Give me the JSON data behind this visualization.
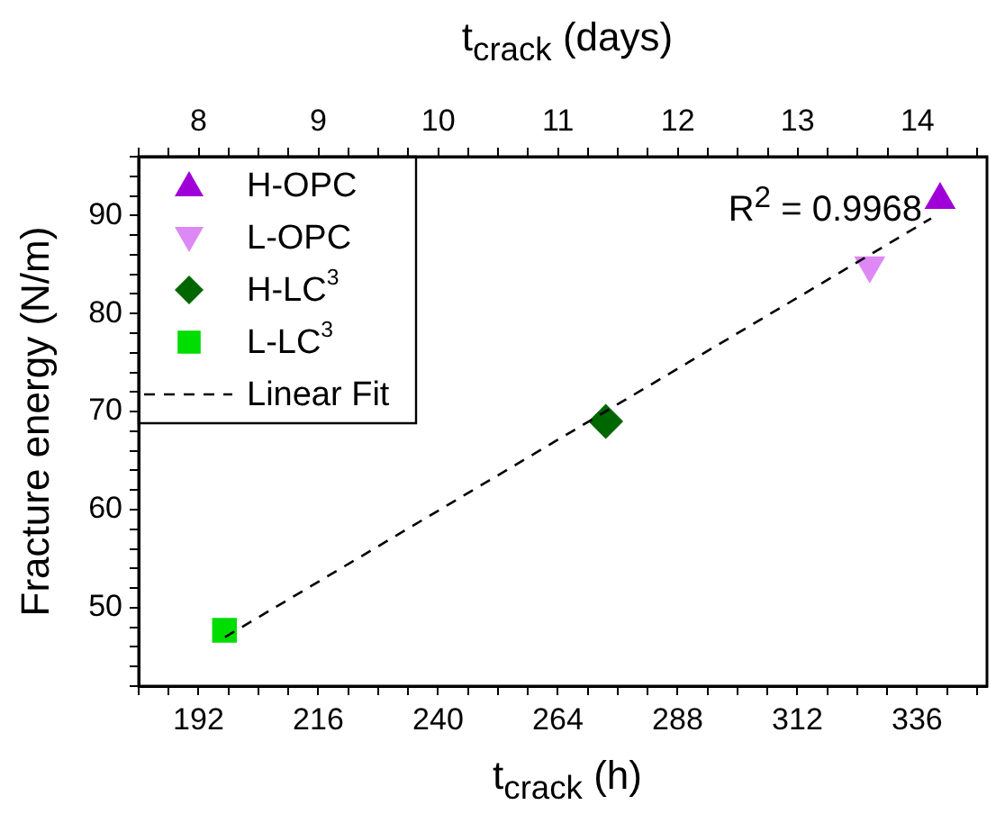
{
  "chart_data": {
    "type": "scatter",
    "xlabel": "t$_{crack}$ (h)",
    "x2label": "t$_{crack}$ (days)",
    "ylabel": "Fracture energy (N/m)",
    "xlim": [
      180,
      350
    ],
    "xticks": [
      {
        "value": 180,
        "label": null
      },
      {
        "value": 186,
        "label": null
      },
      192,
      {
        "value": 198,
        "label": null
      },
      {
        "value": 204,
        "label": null
      },
      {
        "value": 210,
        "label": null
      },
      216,
      {
        "value": 222,
        "label": null
      },
      {
        "value": 228,
        "label": null
      },
      {
        "value": 234,
        "label": null
      },
      240,
      {
        "value": 246,
        "label": null
      },
      {
        "value": 252,
        "label": null
      },
      {
        "value": 258,
        "label": null
      },
      264,
      {
        "value": 270,
        "label": null
      },
      {
        "value": 276,
        "label": null
      },
      {
        "value": 282,
        "label": null
      },
      288,
      {
        "value": 294,
        "label": null
      },
      {
        "value": 300,
        "label": null
      },
      {
        "value": 306,
        "label": null
      },
      312,
      {
        "value": 318,
        "label": null
      },
      {
        "value": 324,
        "label": null
      },
      {
        "value": 330,
        "label": null
      },
      336,
      {
        "value": 342,
        "label": null
      },
      {
        "value": 348,
        "label": null
      }
    ],
    "x2lim": [
      7.5,
      14.58
    ],
    "x2ticks": [
      {
        "value": 7.5,
        "label": null
      },
      {
        "value": 7.75,
        "label": null
      },
      8,
      {
        "value": 8.25,
        "label": null
      },
      {
        "value": 8.5,
        "label": null
      },
      {
        "value": 8.75,
        "label": null
      },
      9,
      {
        "value": 9.25,
        "label": null
      },
      {
        "value": 9.5,
        "label": null
      },
      {
        "value": 9.75,
        "label": null
      },
      10,
      {
        "value": 10.25,
        "label": null
      },
      {
        "value": 10.5,
        "label": null
      },
      {
        "value": 10.75,
        "label": null
      },
      11,
      {
        "value": 11.25,
        "label": null
      },
      {
        "value": 11.5,
        "label": null
      },
      {
        "value": 11.75,
        "label": null
      },
      12,
      {
        "value": 12.25,
        "label": null
      },
      {
        "value": 12.5,
        "label": null
      },
      {
        "value": 12.75,
        "label": null
      },
      13,
      {
        "value": 13.25,
        "label": null
      },
      {
        "value": 13.5,
        "label": null
      },
      {
        "value": 13.75,
        "label": null
      },
      14,
      {
        "value": 14.25,
        "label": null
      },
      {
        "value": 14.5,
        "label": null
      }
    ],
    "ylim": [
      42,
      96
    ],
    "yticks": [
      {
        "value": 42,
        "label": null
      },
      {
        "value": 44,
        "label": null
      },
      {
        "value": 46,
        "label": null
      },
      {
        "value": 48,
        "label": null
      },
      50,
      {
        "value": 52,
        "label": null
      },
      {
        "value": 54,
        "label": null
      },
      {
        "value": 56,
        "label": null
      },
      {
        "value": 58,
        "label": null
      },
      60,
      {
        "value": 62,
        "label": null
      },
      {
        "value": 64,
        "label": null
      },
      {
        "value": 66,
        "label": null
      },
      {
        "value": 68,
        "label": null
      },
      70,
      {
        "value": 72,
        "label": null
      },
      {
        "value": 74,
        "label": null
      },
      {
        "value": 76,
        "label": null
      },
      {
        "value": 78,
        "label": null
      },
      80,
      {
        "value": 82,
        "label": null
      },
      {
        "value": 84,
        "label": null
      },
      {
        "value": 86,
        "label": null
      },
      {
        "value": 88,
        "label": null
      },
      90,
      {
        "value": 92,
        "label": null
      },
      {
        "value": 94,
        "label": null
      },
      {
        "value": 96,
        "label": null
      }
    ],
    "grid": false,
    "legend": "top left",
    "annotations": [
      "R$^{2}$ = 0.9968"
    ],
    "series": [
      {
        "name": "H-OPC",
        "color": "#a000d8",
        "marker": "triangle",
        "x": [
          340.6
        ],
        "values": [
          91.6
        ]
      },
      {
        "name": "L-OPC",
        "color": "#dd88f4",
        "marker": "triangle-down",
        "x": [
          326.5
        ],
        "values": [
          84.9
        ]
      },
      {
        "name": "H-LC$^{3}$",
        "color": "#006600",
        "marker": "diamond",
        "x": [
          273.6
        ],
        "values": [
          69.0
        ]
      },
      {
        "name": "L-LC$^{3}$",
        "color": "#00dd00",
        "marker": "square",
        "x": [
          197.2
        ],
        "values": [
          47.7
        ]
      },
      {
        "name": "Linear Fit",
        "type": "line",
        "color": "#000000",
        "marker": "none",
        "line_style": "dashed",
        "x": [
          197.3,
          338.8
        ],
        "values": [
          47.0,
          89.7
        ]
      }
    ]
  }
}
